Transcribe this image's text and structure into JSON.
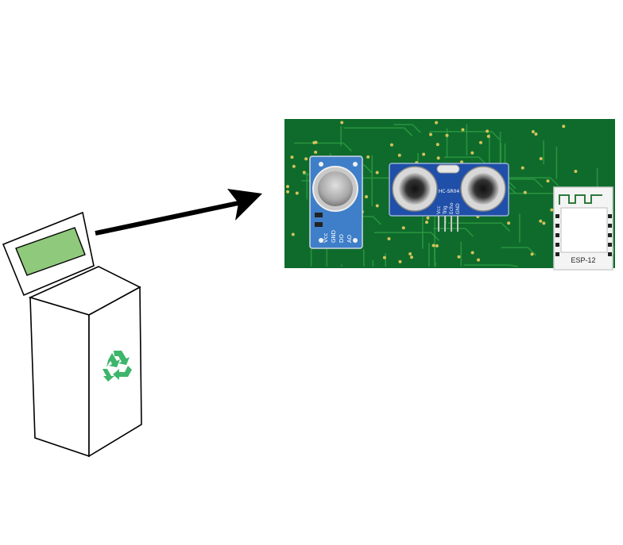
{
  "colors": {
    "pcb": "#0f6b2c",
    "trace": "#2ea043",
    "screen": "#8fc97b",
    "recycle": "#3db56b",
    "gas_board": "#3f7fc9",
    "sonar_board": "#1f4fa8",
    "arrow": "#000000"
  },
  "icons": {
    "recycle": "recycle-icon",
    "arrow": "arrow-right-icon"
  },
  "gas_sensor": {
    "pins": [
      "Vcc",
      "GND",
      "DO",
      "AO"
    ]
  },
  "ultrasonic_sensor": {
    "model": "HC-SR04",
    "pins": [
      "Vcc",
      "Trig",
      "Echo",
      "GND"
    ]
  },
  "wifi_module": {
    "label": "ESP-12"
  }
}
